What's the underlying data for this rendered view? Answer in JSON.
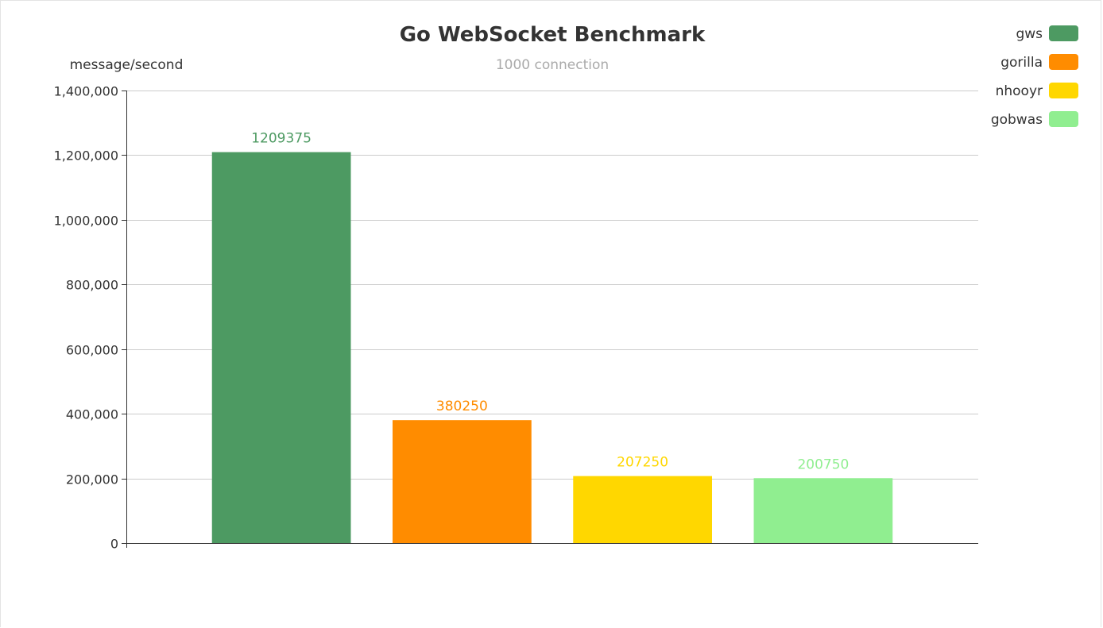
{
  "chart_data": {
    "type": "bar",
    "title": "Go WebSocket Benchmark",
    "subtitle": "1000 connection",
    "xlabel": "",
    "ylabel": "message/second",
    "ylim": [
      0,
      1400000
    ],
    "y_ticks": [
      0,
      200000,
      400000,
      600000,
      800000,
      1000000,
      1200000,
      1400000
    ],
    "y_tick_labels": [
      "0",
      "200,000",
      "400,000",
      "600,000",
      "800,000",
      "1,000,000",
      "1,200,000",
      "1,400,000"
    ],
    "grid": true,
    "legend_position": "top-right",
    "series": [
      {
        "name": "gws",
        "value": 1209375,
        "label": "1209375",
        "color": "#4d9a62"
      },
      {
        "name": "gorilla",
        "value": 380250,
        "label": "380250",
        "color": "#ff8c00"
      },
      {
        "name": "nhooyr",
        "value": 207250,
        "label": "207250",
        "color": "#ffd700"
      },
      {
        "name": "gobwas",
        "value": 200750,
        "label": "200750",
        "color": "#90ee90"
      }
    ]
  }
}
